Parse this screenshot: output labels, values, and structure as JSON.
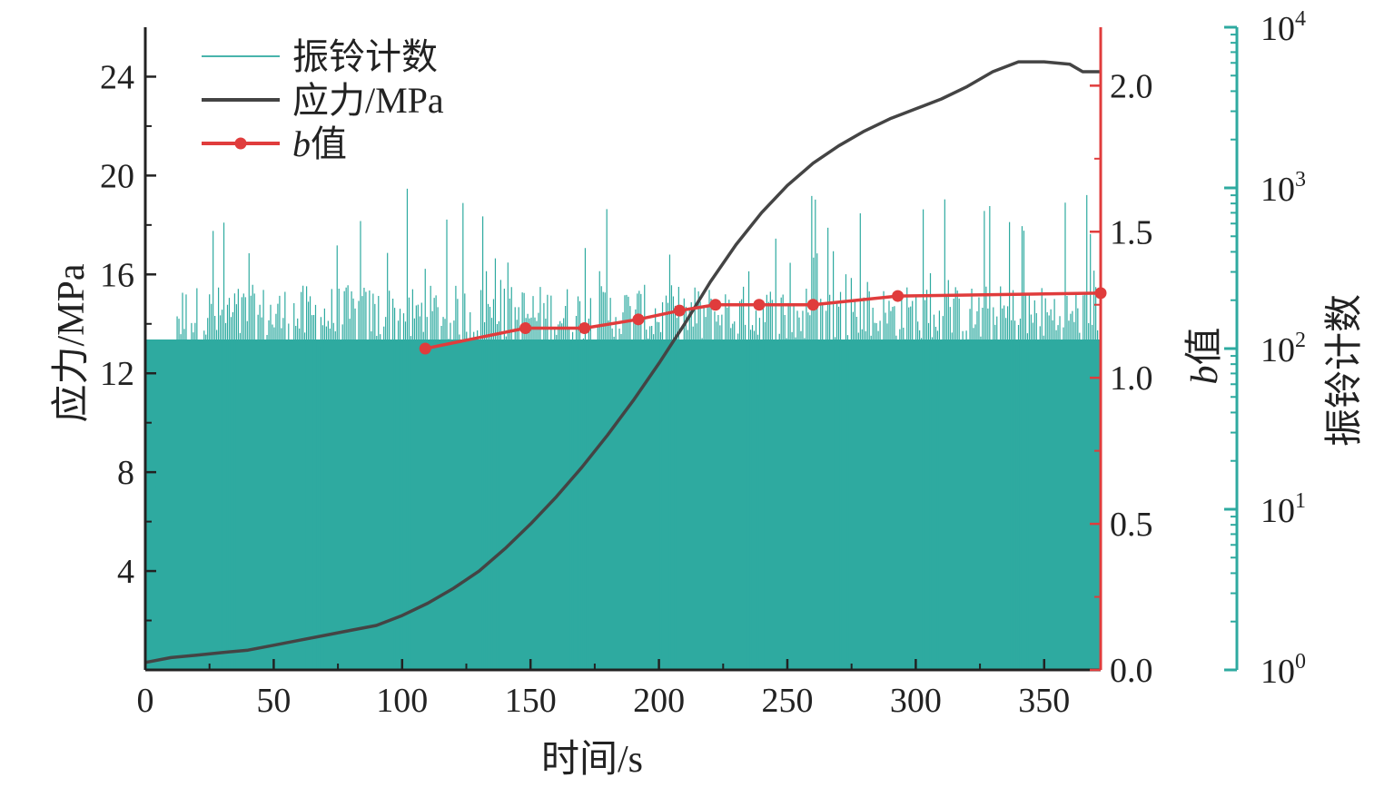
{
  "chart_data": {
    "type": "line",
    "title": "",
    "xlabel": "时间/s",
    "ylabel_left": "应力/MPa",
    "ylabel_right1": "b值",
    "ylabel_right2": "振铃计数",
    "xlim": [
      0,
      372
    ],
    "ylim_left": [
      0,
      26
    ],
    "ylim_right1": [
      0,
      2.2
    ],
    "ylim_right2": [
      1,
      10000
    ],
    "right2_scale": "log",
    "x_ticks": [
      0,
      50,
      100,
      150,
      200,
      250,
      300,
      350
    ],
    "y_left_ticks": [
      4,
      8,
      12,
      16,
      20,
      24
    ],
    "y_right1_ticks": [
      0.0,
      0.5,
      1.0,
      1.5,
      2.0
    ],
    "y_right1_tick_labels": [
      "0.0",
      "0.5",
      "1.0",
      "1.5",
      "2.0"
    ],
    "y_right2_ticks": [
      {
        "value": 1,
        "base": "10",
        "exp": "0"
      },
      {
        "value": 10,
        "base": "10",
        "exp": "1"
      },
      {
        "value": 100,
        "base": "10",
        "exp": "2"
      },
      {
        "value": 1000,
        "base": "10",
        "exp": "3"
      },
      {
        "value": 10000,
        "base": "10",
        "exp": "4"
      }
    ],
    "legend": {
      "position": "top-left",
      "entries": [
        {
          "label": "振铃计数",
          "kind": "thin-line",
          "color": "#2eaaa0"
        },
        {
          "label": "应力/MPa",
          "kind": "line",
          "color": "#444444"
        },
        {
          "label": "b值",
          "kind": "line-marker",
          "color": "#e03c3c",
          "italic_prefix": "b",
          "suffix": "值"
        }
      ]
    },
    "colors": {
      "ringing": "#2eaaa0",
      "stress": "#444444",
      "bvalue": "#e03c3c",
      "axis_left": "#222222",
      "axis_right1": "#e03c3c",
      "axis_right2": "#2eaaa0"
    },
    "series": [
      {
        "name": "应力/MPa",
        "axis": "left",
        "x": [
          0,
          10,
          20,
          30,
          40,
          50,
          60,
          70,
          80,
          90,
          100,
          110,
          120,
          130,
          140,
          150,
          160,
          170,
          180,
          190,
          200,
          210,
          220,
          230,
          240,
          250,
          260,
          270,
          280,
          290,
          300,
          310,
          320,
          330,
          340,
          350,
          360,
          365,
          372
        ],
        "values": [
          0.3,
          0.5,
          0.6,
          0.7,
          0.8,
          1.0,
          1.2,
          1.4,
          1.6,
          1.8,
          2.2,
          2.7,
          3.3,
          4.0,
          4.9,
          5.9,
          7.0,
          8.2,
          9.5,
          10.9,
          12.4,
          14.0,
          15.7,
          17.2,
          18.5,
          19.6,
          20.5,
          21.2,
          21.8,
          22.3,
          22.7,
          23.1,
          23.6,
          24.2,
          24.6,
          24.6,
          24.5,
          24.2,
          24.2
        ]
      },
      {
        "name": "b值",
        "axis": "right1",
        "x": [
          109,
          148,
          171,
          192,
          208,
          222,
          239,
          260,
          293,
          372
        ],
        "values": [
          1.1,
          1.17,
          1.17,
          1.2,
          1.23,
          1.25,
          1.25,
          1.25,
          1.28,
          1.29
        ]
      },
      {
        "name": "振铃计数",
        "axis": "right2",
        "type": "bar",
        "x_range": [
          0,
          372
        ],
        "typical_range": [
          100,
          250
        ],
        "peak": 1000,
        "note_values": "dense per-second ringing counts, mostly 100–250, peaks up to about 1000"
      }
    ]
  }
}
